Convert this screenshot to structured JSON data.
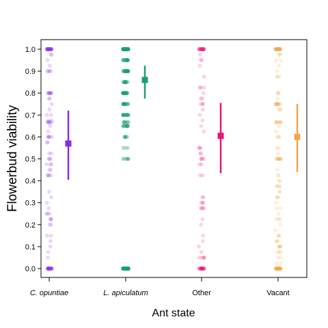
{
  "chart_data": {
    "type": "scatter",
    "xlabel": "Ant state",
    "ylabel": "Flowerbud viability",
    "ylim": [
      0,
      1
    ],
    "yticks": [
      "0.0",
      "0.1",
      "0.2",
      "0.3",
      "0.4",
      "0.5",
      "0.6",
      "0.7",
      "0.8",
      "0.9",
      "1.0"
    ],
    "categories": [
      "C. opuntiae",
      "L. apiculatum",
      "Other",
      "Vacant"
    ],
    "italic_categories": [
      true,
      true,
      false,
      false
    ],
    "grid": false,
    "legend": "none",
    "series": [
      {
        "category": "C. opuntiae",
        "color": "#8A2BE2",
        "mean": 0.57,
        "ci": [
          0.405,
          0.72
        ],
        "raw_points": 120,
        "raw_dense_values": [
          1.0,
          0.0,
          0.5,
          0.667,
          0.75,
          0.6,
          0.8,
          0.9
        ]
      },
      {
        "category": "L. apiculatum",
        "color": "#1B9E77",
        "mean": 0.86,
        "ci": [
          0.775,
          0.925
        ],
        "raw_points": 330,
        "raw_dense_values": [
          1.0,
          0.0,
          0.5,
          0.667,
          0.75,
          0.8,
          0.9,
          0.95
        ]
      },
      {
        "category": "Other",
        "color": "#E7157A",
        "mean": 0.605,
        "ci": [
          0.435,
          0.755
        ],
        "raw_points": 95,
        "raw_dense_values": [
          1.0,
          0.0,
          0.5,
          0.667,
          0.75
        ]
      },
      {
        "category": "Vacant",
        "color": "#F5A54A",
        "mean": 0.6,
        "ci": [
          0.44,
          0.75
        ],
        "raw_points": 160,
        "raw_dense_values": [
          1.0,
          0.0,
          0.5,
          0.667,
          0.75
        ]
      }
    ]
  }
}
